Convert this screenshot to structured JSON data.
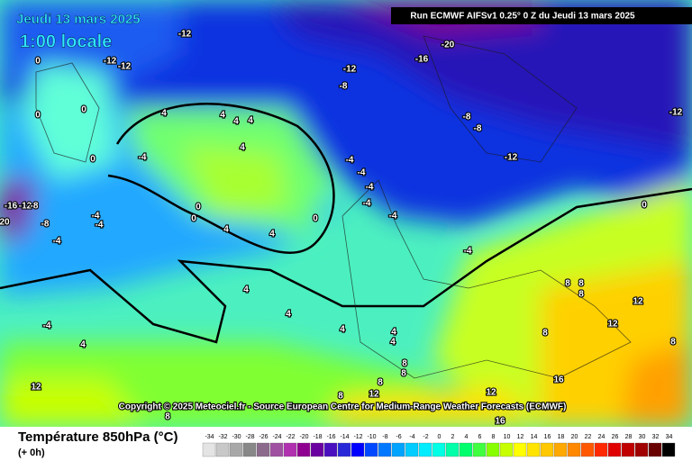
{
  "header": {
    "date": "Jeudi 13 mars 2025",
    "time": "1:00 locale",
    "run": "Run ECMWF AIFSv1 0.25° 0 Z du Jeudi 13 mars 2025"
  },
  "copyright": "Copyright © 2025 Meteociel.fr - Source European Centre for Medium-Range Weather Forecasts (ECMWF)",
  "footer": {
    "title": "Température 850hPa (°C)",
    "subtitle": "(+ 0h)"
  },
  "scale": {
    "values": [
      -34,
      -32,
      -30,
      -28,
      -26,
      -24,
      -22,
      -20,
      -18,
      -16,
      -14,
      -12,
      -10,
      -8,
      -6,
      -4,
      -2,
      0,
      2,
      4,
      6,
      8,
      10,
      12,
      14,
      16,
      18,
      20,
      22,
      24,
      26,
      28,
      30,
      32,
      34
    ],
    "colors": [
      "#e4e4e4",
      "#c8c8c8",
      "#a8a8a8",
      "#888888",
      "#8c6a8c",
      "#a050a0",
      "#b030b0",
      "#900090",
      "#6a00a0",
      "#4a10c0",
      "#2828d8",
      "#0000ff",
      "#0048ff",
      "#0078ff",
      "#00a4ff",
      "#00ccff",
      "#00ecff",
      "#00ffe4",
      "#00ffa8",
      "#00ff6c",
      "#40ff40",
      "#88ff00",
      "#c8ff00",
      "#ffff00",
      "#ffe400",
      "#ffc800",
      "#ffa800",
      "#ff8800",
      "#ff5800",
      "#ff2800",
      "#e00000",
      "#c00000",
      "#a00000",
      "#680000",
      "#000000"
    ]
  },
  "contour_labels": [
    -12,
    -12,
    -12,
    -20,
    -16,
    -12,
    -8,
    -8,
    -8,
    -12,
    -12,
    0,
    0,
    0,
    0,
    4,
    4,
    4,
    4,
    4,
    -4,
    -4,
    -4,
    -4,
    -4,
    -4,
    -4,
    0,
    0,
    0,
    4,
    4,
    -16,
    -12,
    -8,
    20,
    -8,
    -4,
    -4,
    -4,
    0,
    4,
    4,
    4,
    4,
    4,
    8,
    8,
    8,
    12,
    12,
    8,
    8,
    -4,
    4,
    8,
    8,
    8,
    12,
    8,
    8,
    12,
    16,
    16,
    12
  ]
}
